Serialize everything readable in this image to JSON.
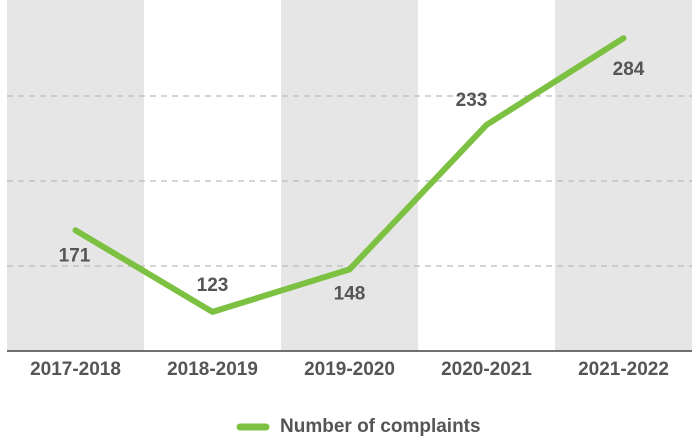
{
  "chart_data": {
    "type": "line",
    "categories": [
      "2017-2018",
      "2018-2019",
      "2019-2020",
      "2020-2021",
      "2021-2022"
    ],
    "series": [
      {
        "name": "Number of complaints",
        "color": "#7dc142",
        "values": [
          171,
          123,
          148,
          233,
          284
        ]
      }
    ],
    "ylim": [
      100,
      300
    ],
    "yticks": [
      150,
      200,
      250
    ],
    "grid": true,
    "legend": "bottom"
  }
}
